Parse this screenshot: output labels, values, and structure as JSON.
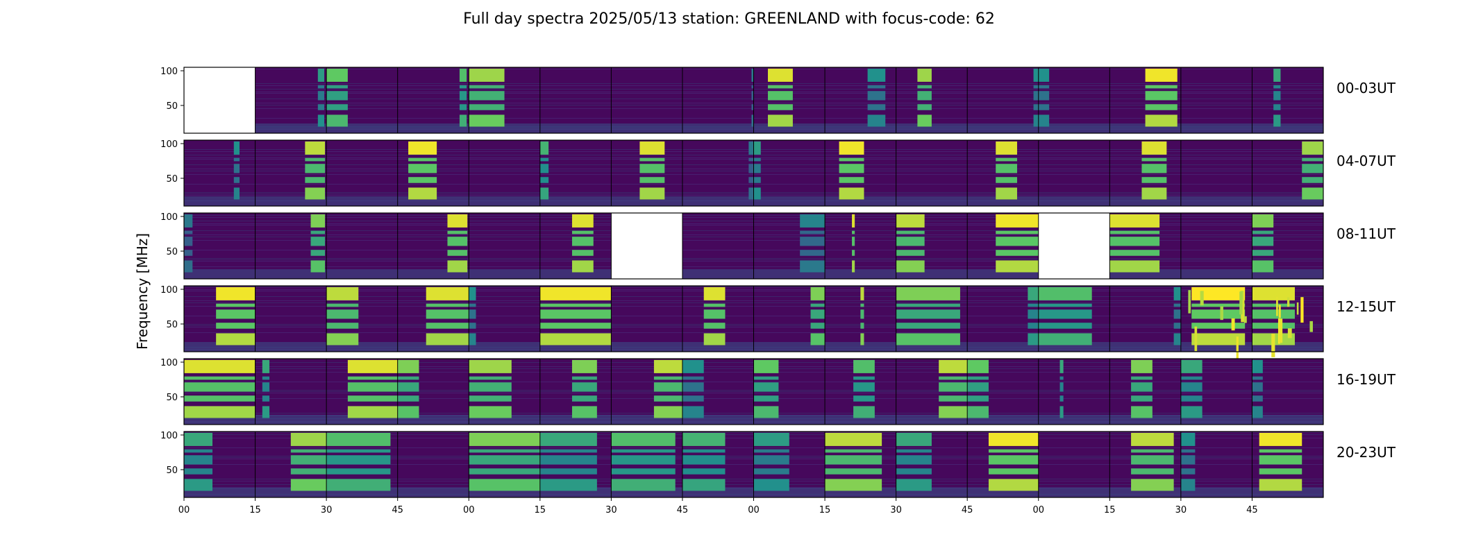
{
  "chart_data": {
    "type": "heatmap",
    "title": "Full day spectra 2025/05/13 station: GREENLAND with focus-code: 62",
    "ylabel": "Frequency [MHz]",
    "xlabel": "",
    "ylim": [
      10,
      105
    ],
    "y_ticks": [
      50,
      100
    ],
    "x_tick_labels": [
      "00",
      "15",
      "30",
      "45",
      "00",
      "15",
      "30",
      "45",
      "00",
      "15",
      "30",
      "45",
      "00",
      "15",
      "30",
      "45"
    ],
    "row_labels": [
      "00-03UT",
      "04-07UT",
      "08-11UT",
      "12-15UT",
      "16-19UT",
      "20-23UT"
    ],
    "panels_per_row": 16,
    "panel_minutes": 15,
    "colormap": "viridis",
    "grid": false,
    "colors": {
      "background": "#440154",
      "low": "#46085c",
      "mid": "#31688e",
      "high": "#35b779",
      "peak": "#fde725",
      "empty": "#ffffff"
    },
    "rows": [
      {
        "label": "00-03UT",
        "panels": [
          {
            "empty": true,
            "bands": []
          },
          {
            "bands": [
              [
                0.88,
                0.97,
                0.55
              ]
            ]
          },
          {
            "bands": [
              [
                0.0,
                0.3,
                0.75
              ]
            ]
          },
          {
            "bands": [
              [
                0.87,
                0.97,
                0.7
              ]
            ]
          },
          {
            "bands": [
              [
                0.0,
                0.5,
                0.85
              ]
            ]
          },
          {
            "bands": []
          },
          {
            "bands": []
          },
          {
            "bands": [
              [
                0.97,
                1.0,
                0.4
              ]
            ]
          },
          {
            "bands": [
              [
                0.2,
                0.55,
                0.95
              ]
            ]
          },
          {
            "bands": [
              [
                0.6,
                0.85,
                0.5
              ]
            ]
          },
          {
            "bands": [
              [
                0.3,
                0.5,
                0.85
              ]
            ]
          },
          {
            "bands": [
              [
                0.93,
                1.0,
                0.5
              ]
            ]
          },
          {
            "bands": [
              [
                0.0,
                0.15,
                0.5
              ]
            ]
          },
          {
            "bands": [
              [
                0.5,
                0.95,
                0.98
              ]
            ]
          },
          {
            "bands": []
          },
          {
            "bands": [
              [
                0.3,
                0.4,
                0.6
              ]
            ]
          }
        ]
      },
      {
        "label": "04-07UT",
        "panels": [
          {
            "bands": [
              [
                0.7,
                0.78,
                0.5
              ]
            ]
          },
          {
            "bands": [
              [
                0.7,
                0.98,
                0.9
              ]
            ]
          },
          {
            "bands": []
          },
          {
            "bands": [
              [
                0.15,
                0.55,
                0.98
              ]
            ]
          },
          {
            "bands": []
          },
          {
            "bands": [
              [
                0.0,
                0.12,
                0.65
              ]
            ]
          },
          {
            "bands": [
              [
                0.4,
                0.75,
                0.95
              ]
            ]
          },
          {
            "bands": [
              [
                0.93,
                1.0,
                0.4
              ]
            ]
          },
          {
            "bands": [
              [
                0.0,
                0.1,
                0.55
              ]
            ]
          },
          {
            "bands": [
              [
                0.2,
                0.55,
                0.98
              ]
            ]
          },
          {
            "bands": []
          },
          {
            "bands": [
              [
                0.4,
                0.7,
                0.95
              ]
            ]
          },
          {
            "bands": []
          },
          {
            "bands": [
              [
                0.45,
                0.8,
                0.95
              ]
            ]
          },
          {
            "bands": []
          },
          {
            "bands": [
              [
                0.7,
                1.0,
                0.85
              ]
            ]
          }
        ]
      },
      {
        "label": "08-11UT",
        "panels": [
          {
            "bands": [
              [
                0.0,
                0.12,
                0.4
              ]
            ]
          },
          {
            "bands": [
              [
                0.78,
                0.98,
                0.8
              ]
            ]
          },
          {
            "bands": []
          },
          {
            "bands": [
              [
                0.7,
                0.98,
                0.95
              ]
            ]
          },
          {
            "bands": []
          },
          {
            "bands": [
              [
                0.45,
                0.75,
                0.95
              ]
            ]
          },
          {
            "empty": true,
            "bands": []
          },
          {
            "bands": []
          },
          {
            "bands": [
              [
                0.65,
                1.0,
                0.45
              ]
            ]
          },
          {
            "bands": [
              [
                0.38,
                0.42,
                0.95
              ]
            ]
          },
          {
            "bands": [
              [
                0.0,
                0.4,
                0.9
              ]
            ]
          },
          {
            "bands": [
              [
                0.4,
                1.0,
                0.98
              ]
            ]
          },
          {
            "empty": true,
            "bands": []
          },
          {
            "bands": [
              [
                0.0,
                0.7,
                0.95
              ]
            ]
          },
          {
            "bands": []
          },
          {
            "bands": [
              [
                0.0,
                0.3,
                0.8
              ]
            ]
          }
        ]
      },
      {
        "label": "12-15UT",
        "panels": [
          {
            "bands": [
              [
                0.45,
                1.0,
                0.98
              ]
            ]
          },
          {
            "bands": []
          },
          {
            "bands": [
              [
                0.0,
                0.45,
                0.9
              ]
            ]
          },
          {
            "bands": [
              [
                0.4,
                1.0,
                0.95
              ]
            ]
          },
          {
            "bands": [
              [
                0.0,
                0.1,
                0.5
              ]
            ]
          },
          {
            "bands": [
              [
                0.0,
                1.0,
                0.98
              ]
            ]
          },
          {
            "bands": []
          },
          {
            "bands": [
              [
                0.3,
                0.6,
                0.95
              ]
            ]
          },
          {
            "bands": [
              [
                0.8,
                1.0,
                0.8
              ]
            ]
          },
          {
            "bands": [
              [
                0.5,
                0.55,
                0.9
              ]
            ]
          },
          {
            "bands": [
              [
                0.0,
                0.9,
                0.8
              ]
            ]
          },
          {
            "bands": [
              [
                0.85,
                1.0,
                0.6
              ]
            ]
          },
          {
            "bands": [
              [
                0.0,
                0.75,
                0.7
              ]
            ]
          },
          {
            "bands": [
              [
                0.9,
                1.0,
                0.5
              ]
            ]
          },
          {
            "burst": true,
            "bands": [
              [
                0.15,
                0.9,
                1.0
              ]
            ]
          },
          {
            "burst": true,
            "bands": [
              [
                0.0,
                0.6,
                0.95
              ]
            ]
          }
        ]
      },
      {
        "label": "16-19UT",
        "panels": [
          {
            "bands": [
              [
                0.0,
                1.0,
                0.95
              ]
            ]
          },
          {
            "bands": [
              [
                0.1,
                0.2,
                0.6
              ]
            ]
          },
          {
            "bands": [
              [
                0.3,
                1.0,
                0.95
              ]
            ]
          },
          {
            "bands": [
              [
                0.0,
                0.3,
                0.8
              ]
            ]
          },
          {
            "bands": [
              [
                0.0,
                0.6,
                0.85
              ]
            ]
          },
          {
            "bands": [
              [
                0.45,
                0.8,
                0.8
              ]
            ]
          },
          {
            "bands": [
              [
                0.6,
                1.0,
                0.9
              ]
            ]
          },
          {
            "bands": [
              [
                0.0,
                0.3,
                0.5
              ]
            ]
          },
          {
            "bands": [
              [
                0.0,
                0.35,
                0.75
              ]
            ]
          },
          {
            "bands": [
              [
                0.4,
                0.7,
                0.7
              ]
            ]
          },
          {
            "bands": [
              [
                0.6,
                1.0,
                0.9
              ]
            ]
          },
          {
            "bands": [
              [
                0.0,
                0.3,
                0.75
              ]
            ]
          },
          {
            "bands": [
              [
                0.3,
                0.35,
                0.6
              ]
            ]
          },
          {
            "bands": [
              [
                0.3,
                0.6,
                0.8
              ]
            ]
          },
          {
            "bands": [
              [
                0.0,
                0.3,
                0.6
              ]
            ]
          },
          {
            "bands": [
              [
                0.0,
                0.15,
                0.5
              ]
            ]
          }
        ]
      },
      {
        "label": "20-23UT",
        "panels": [
          {
            "bands": [
              [
                0.0,
                0.4,
                0.6
              ]
            ]
          },
          {
            "bands": [
              [
                0.5,
                1.0,
                0.85
              ]
            ]
          },
          {
            "bands": [
              [
                0.0,
                0.9,
                0.7
              ]
            ]
          },
          {
            "bands": []
          },
          {
            "bands": [
              [
                0.0,
                1.0,
                0.8
              ]
            ]
          },
          {
            "bands": [
              [
                0.0,
                0.8,
                0.6
              ]
            ]
          },
          {
            "bands": [
              [
                0.0,
                0.9,
                0.7
              ]
            ]
          },
          {
            "bands": [
              [
                0.0,
                0.6,
                0.65
              ]
            ]
          },
          {
            "bands": [
              [
                0.0,
                0.5,
                0.55
              ]
            ]
          },
          {
            "bands": [
              [
                0.0,
                0.8,
                0.9
              ]
            ]
          },
          {
            "bands": [
              [
                0.0,
                0.5,
                0.6
              ]
            ]
          },
          {
            "bands": [
              [
                0.3,
                1.0,
                0.98
              ]
            ]
          },
          {
            "bands": []
          },
          {
            "bands": [
              [
                0.3,
                0.9,
                0.9
              ]
            ]
          },
          {
            "bands": [
              [
                0.0,
                0.2,
                0.5
              ]
            ]
          },
          {
            "bands": [
              [
                0.1,
                0.7,
                0.98
              ]
            ]
          }
        ]
      }
    ]
  }
}
